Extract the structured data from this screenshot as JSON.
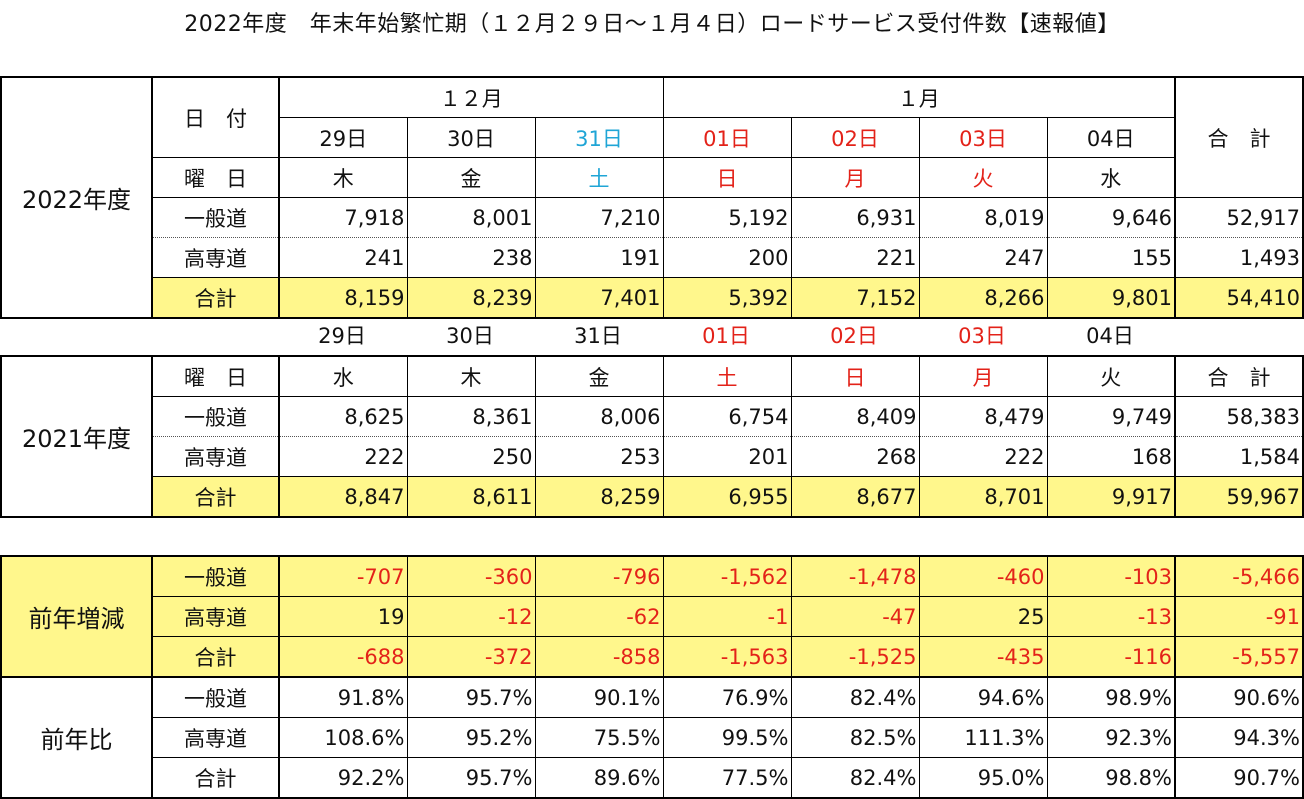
{
  "title": "2022年度　年末年始繁忙期（１２月２９日～１月４日）ロードサービス受付件数【速報値】",
  "labels": {
    "date_header": "日　付",
    "dow_header": "曜　日",
    "general": "一般道",
    "highway": "高専道",
    "total_row": "合計",
    "total_col": "合　計"
  },
  "months": [
    "１２月",
    "１月"
  ],
  "dates": [
    "29日",
    "30日",
    "31日",
    "01日",
    "02日",
    "03日",
    "04日"
  ],
  "colors": {
    "red": "#e32219",
    "blue": "#1fa5d6",
    "highlight": "#fff78c"
  },
  "fy2022": {
    "label": "2022年度",
    "dow": [
      "木",
      "金",
      "土",
      "日",
      "月",
      "火",
      "水"
    ],
    "general": [
      "7,918",
      "8,001",
      "7,210",
      "5,192",
      "6,931",
      "8,019",
      "9,646"
    ],
    "general_total": "52,917",
    "highway": [
      "241",
      "238",
      "191",
      "200",
      "221",
      "247",
      "155"
    ],
    "highway_total": "1,493",
    "total": [
      "8,159",
      "8,239",
      "7,401",
      "5,392",
      "7,152",
      "8,266",
      "9,801"
    ],
    "total_total": "54,410"
  },
  "fy2021": {
    "label": "2021年度",
    "dow": [
      "水",
      "木",
      "金",
      "土",
      "日",
      "月",
      "火"
    ],
    "general": [
      "8,625",
      "8,361",
      "8,006",
      "6,754",
      "8,409",
      "8,479",
      "9,749"
    ],
    "general_total": "58,383",
    "highway": [
      "222",
      "250",
      "253",
      "201",
      "268",
      "222",
      "168"
    ],
    "highway_total": "1,584",
    "total": [
      "8,847",
      "8,611",
      "8,259",
      "6,955",
      "8,677",
      "8,701",
      "9,917"
    ],
    "total_total": "59,967"
  },
  "change": {
    "label": "前年増減",
    "general": [
      "-707",
      "-360",
      "-796",
      "-1,562",
      "-1,478",
      "-460",
      "-103"
    ],
    "general_total": "-5,466",
    "highway": [
      "19",
      "-12",
      "-62",
      "-1",
      "-47",
      "25",
      "-13"
    ],
    "highway_total": "-91",
    "total": [
      "-688",
      "-372",
      "-858",
      "-1,563",
      "-1,525",
      "-435",
      "-116"
    ],
    "total_total": "-5,557"
  },
  "ratio": {
    "label": "前年比",
    "general": [
      "91.8%",
      "95.7%",
      "90.1%",
      "76.9%",
      "82.4%",
      "94.6%",
      "98.9%"
    ],
    "general_total": "90.6%",
    "highway": [
      "108.6%",
      "95.2%",
      "75.5%",
      "99.5%",
      "82.5%",
      "111.3%",
      "92.3%"
    ],
    "highway_total": "94.3%",
    "total": [
      "92.2%",
      "95.7%",
      "89.6%",
      "77.5%",
      "82.4%",
      "95.0%",
      "98.8%"
    ],
    "total_total": "90.7%"
  }
}
